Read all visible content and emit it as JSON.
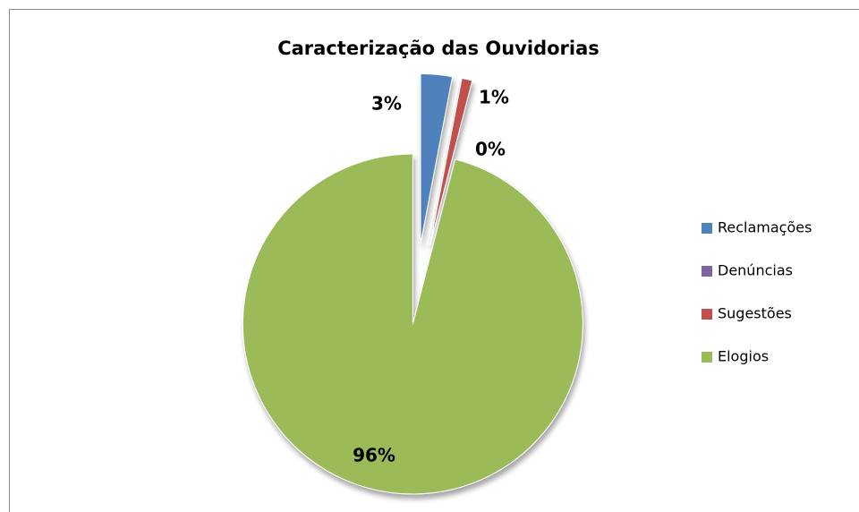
{
  "chart_data": {
    "type": "pie",
    "title": "Caracterização das Ouvidorias",
    "categories": [
      "Reclamações",
      "Denúncias",
      "Sugestões",
      "Elogios"
    ],
    "values": [
      3,
      0,
      1,
      96
    ],
    "value_labels": [
      "3%",
      "0%",
      "1%",
      "96%"
    ],
    "colors": [
      "#4f81bd",
      "#8064a2",
      "#c0504d",
      "#9bbb59"
    ],
    "legend": "right"
  }
}
